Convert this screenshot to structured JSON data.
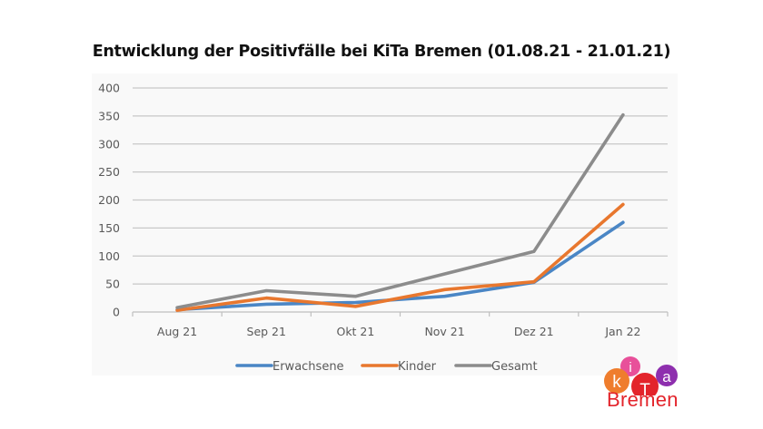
{
  "chart_data": {
    "type": "line",
    "title": "Entwicklung der Positivfälle bei KiTa Bremen (01.08.21 - 21.01.21)",
    "xlabel": "",
    "ylabel": "",
    "categories": [
      "Aug 21",
      "Sep 21",
      "Okt 21",
      "Nov 21",
      "Dez 21",
      "Jan 22"
    ],
    "ylim": [
      0,
      400
    ],
    "yticks": [
      0,
      50,
      100,
      150,
      200,
      250,
      300,
      350,
      400
    ],
    "grid": true,
    "legend_position": "bottom",
    "series": [
      {
        "name": "Erwachsene",
        "color": "#4a86c5",
        "values": [
          4,
          14,
          17,
          28,
          53,
          160
        ]
      },
      {
        "name": "Kinder",
        "color": "#e8772e",
        "values": [
          3,
          25,
          10,
          40,
          54,
          192
        ]
      },
      {
        "name": "Gesamt",
        "color": "#8c8c8c",
        "values": [
          8,
          38,
          28,
          68,
          108,
          352
        ]
      }
    ]
  },
  "logo": {
    "letters": {
      "k": "k",
      "i": "i",
      "t": "T",
      "a": "a"
    },
    "word": "Bremen",
    "colors": {
      "k": "#ef7d2d",
      "i": "#e8509a",
      "t": "#e3242b",
      "a": "#8e2fae",
      "word": "#e3242b"
    }
  }
}
